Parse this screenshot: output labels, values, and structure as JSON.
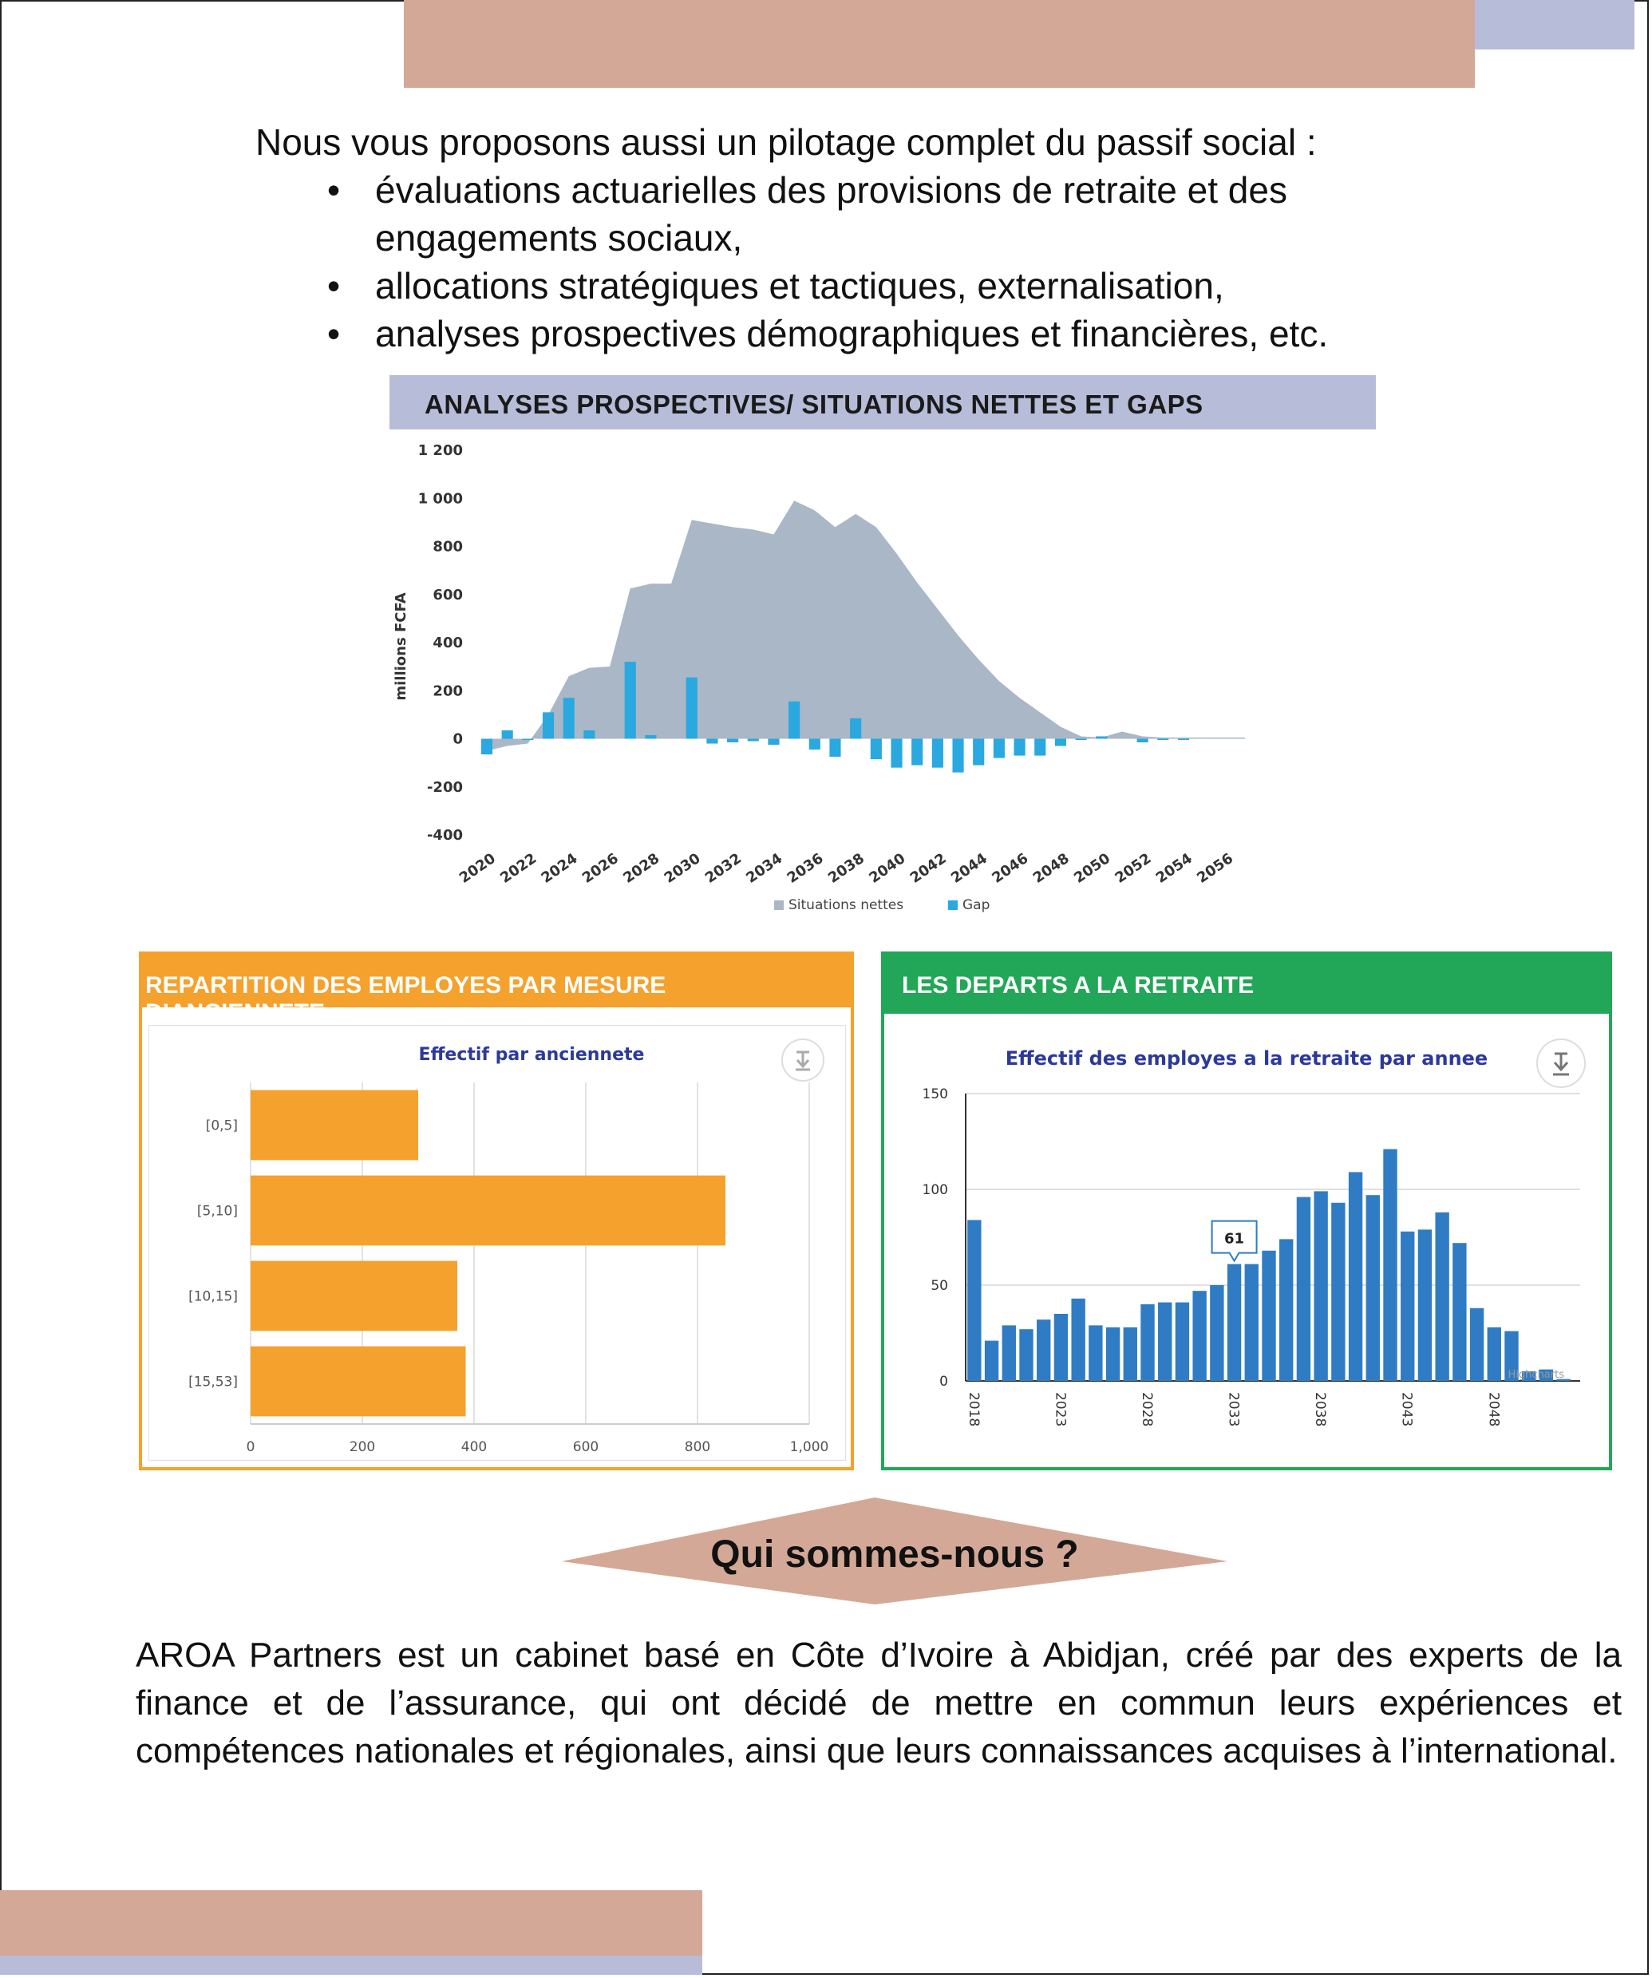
{
  "intro": {
    "lead": "Nous vous proposons aussi un pilotage complet du passif social :",
    "bullets": [
      "évaluations actuarielles des provisions de retraite et des engagements sociaux,",
      "allocations stratégiques et tactiques, externalisation,",
      "analyses prospectives démographiques et financières, etc."
    ]
  },
  "colors": {
    "rose": "#d4a896",
    "lavender": "#b7bdd8",
    "area": "#a9b7c6",
    "gap": "#2aa8e0",
    "orange": "#f5a12d",
    "green": "#22a657",
    "blue_bar": "#2f7cc4"
  },
  "chart1_banner": "ANALYSES PROSPECTIVES/ SITUATIONS NETTES ET GAPS",
  "panel_left": {
    "header": "REPARTITION DES EMPLOYES PAR MESURE D’ANCIENNETE",
    "download_icon": "download-icon"
  },
  "panel_right": {
    "header": "LES DEPARTS A LA RETRAITE",
    "download_icon": "download-icon"
  },
  "qui_title": "Qui sommes-nous ?",
  "about_text": "AROA Partners est un cabinet basé en Côte d’Ivoire à Abidjan, créé par des experts de la finance et de l’assurance, qui ont décidé de mettre en commun leurs expériences et compétences nationales et régionales, ainsi que leurs connaissances acquises à l’international.",
  "chart_data": [
    {
      "type": "area",
      "ylabel": "millions FCFA",
      "ylim": [
        -400,
        1200
      ],
      "y_ticks": [
        1200,
        1000,
        800,
        600,
        400,
        200,
        0,
        -200,
        -400
      ],
      "y_tick_labels": [
        "1 200",
        "1 000",
        "800",
        "600",
        "400",
        "200",
        "0",
        "-200",
        "-400"
      ],
      "x": [
        2020,
        2021,
        2022,
        2023,
        2024,
        2025,
        2026,
        2027,
        2028,
        2029,
        2030,
        2031,
        2032,
        2033,
        2034,
        2035,
        2036,
        2037,
        2038,
        2039,
        2040,
        2041,
        2042,
        2043,
        2044,
        2045,
        2046,
        2047,
        2048,
        2049,
        2050,
        2051,
        2052,
        2053,
        2054,
        2055,
        2056,
        2057
      ],
      "x_tick_labels": [
        "2020",
        "2022",
        "2024",
        "2026",
        "2028",
        "2030",
        "2032",
        "2034",
        "2036",
        "2038",
        "2040",
        "2042",
        "2044",
        "2046",
        "2048",
        "2050",
        "2052",
        "2054",
        "2056"
      ],
      "legend": [
        "Situations nettes",
        "Gap"
      ],
      "legend_position": "bottom",
      "series": [
        {
          "name": "Situations nettes",
          "kind": "area",
          "values": [
            -50,
            -30,
            -20,
            100,
            260,
            295,
            300,
            625,
            645,
            645,
            910,
            895,
            880,
            870,
            850,
            990,
            950,
            880,
            935,
            880,
            770,
            650,
            540,
            430,
            330,
            240,
            170,
            110,
            50,
            10,
            5,
            30,
            10,
            5,
            5,
            5,
            5,
            5
          ]
        },
        {
          "name": "Gap",
          "kind": "bar",
          "values": [
            -65,
            35,
            -5,
            110,
            170,
            35,
            0,
            320,
            15,
            0,
            255,
            -20,
            -15,
            -10,
            -25,
            155,
            -45,
            -75,
            85,
            -85,
            -120,
            -110,
            -120,
            -140,
            -110,
            -80,
            -70,
            -70,
            -30,
            -5,
            10,
            0,
            -15,
            -5,
            -5,
            0,
            0,
            0
          ]
        }
      ]
    },
    {
      "type": "bar",
      "orientation": "horizontal",
      "title": "Effectif par anciennete",
      "categories": [
        "[0,5]",
        "[5,10]",
        "[10,15]",
        "[15,53]"
      ],
      "values": [
        300,
        850,
        370,
        385
      ],
      "xlim": [
        0,
        1000
      ],
      "x_tick_labels": [
        "0",
        "200",
        "400",
        "600",
        "800",
        "1,000"
      ],
      "grid": true
    },
    {
      "type": "bar",
      "title": "Effectif des employes a la retraite par annee",
      "x": [
        2018,
        2019,
        2020,
        2021,
        2022,
        2023,
        2024,
        2025,
        2026,
        2027,
        2028,
        2029,
        2030,
        2031,
        2032,
        2033,
        2034,
        2035,
        2036,
        2037,
        2038,
        2039,
        2040,
        2041,
        2042,
        2043,
        2044,
        2045,
        2046,
        2047,
        2048,
        2049,
        2050,
        2051,
        2052
      ],
      "values": [
        84,
        21,
        29,
        27,
        32,
        35,
        43,
        29,
        28,
        28,
        40,
        41,
        41,
        47,
        50,
        61,
        61,
        68,
        74,
        96,
        99,
        93,
        109,
        97,
        121,
        78,
        79,
        88,
        72,
        38,
        28,
        26,
        5,
        6,
        1
      ],
      "ylim": [
        0,
        150
      ],
      "y_tick_labels": [
        "0",
        "50",
        "100",
        "150"
      ],
      "x_tick_labels": [
        "2018",
        "2023",
        "2028",
        "2033",
        "2038",
        "2043",
        "2048"
      ],
      "tooltip": {
        "label": "61"
      },
      "credits": "Highcharts"
    }
  ]
}
